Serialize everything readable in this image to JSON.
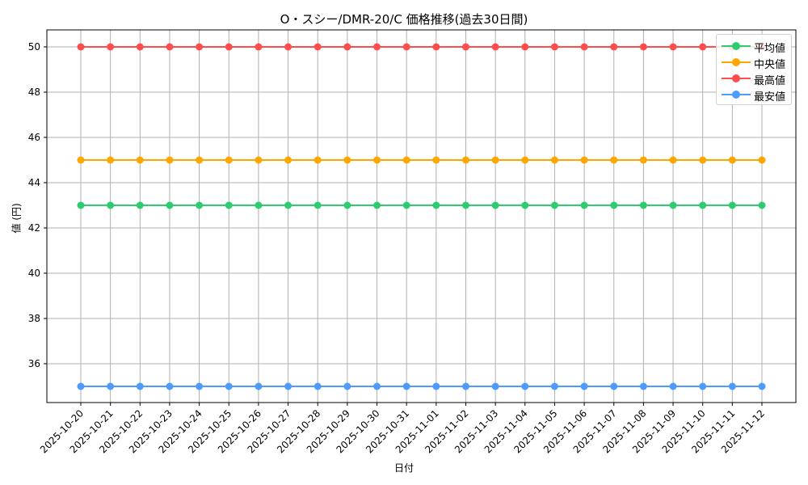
{
  "chart_data": {
    "type": "line",
    "title": "O・スシー/DMR-20/C 価格推移(過去30日間)",
    "xlabel": "日付",
    "ylabel": "値 (円)",
    "x": [
      "2025-10-20",
      "2025-10-21",
      "2025-10-22",
      "2025-10-23",
      "2025-10-24",
      "2025-10-25",
      "2025-10-26",
      "2025-10-27",
      "2025-10-28",
      "2025-10-29",
      "2025-10-30",
      "2025-10-31",
      "2025-11-01",
      "2025-11-02",
      "2025-11-03",
      "2025-11-04",
      "2025-11-05",
      "2025-11-06",
      "2025-11-07",
      "2025-11-08",
      "2025-11-09",
      "2025-11-10",
      "2025-11-11",
      "2025-11-12"
    ],
    "series": [
      {
        "name": "平均値",
        "color": "#2ecc71",
        "values": [
          43,
          43,
          43,
          43,
          43,
          43,
          43,
          43,
          43,
          43,
          43,
          43,
          43,
          43,
          43,
          43,
          43,
          43,
          43,
          43,
          43,
          43,
          43,
          43
        ]
      },
      {
        "name": "中央値",
        "color": "#ffa500",
        "values": [
          45,
          45,
          45,
          45,
          45,
          45,
          45,
          45,
          45,
          45,
          45,
          45,
          45,
          45,
          45,
          45,
          45,
          45,
          45,
          45,
          45,
          45,
          45,
          45
        ]
      },
      {
        "name": "最高値",
        "color": "#ff4d4d",
        "values": [
          50,
          50,
          50,
          50,
          50,
          50,
          50,
          50,
          50,
          50,
          50,
          50,
          50,
          50,
          50,
          50,
          50,
          50,
          50,
          50,
          50,
          50,
          50,
          50
        ]
      },
      {
        "name": "最安値",
        "color": "#4d9bff",
        "values": [
          35,
          35,
          35,
          35,
          35,
          35,
          35,
          35,
          35,
          35,
          35,
          35,
          35,
          35,
          35,
          35,
          35,
          35,
          35,
          35,
          35,
          35,
          35,
          35
        ]
      }
    ],
    "yticks": [
      36,
      38,
      40,
      42,
      44,
      46,
      48,
      50
    ],
    "ylim": [
      34.25,
      50.75
    ],
    "grid": true,
    "legend_position": "upper right"
  }
}
